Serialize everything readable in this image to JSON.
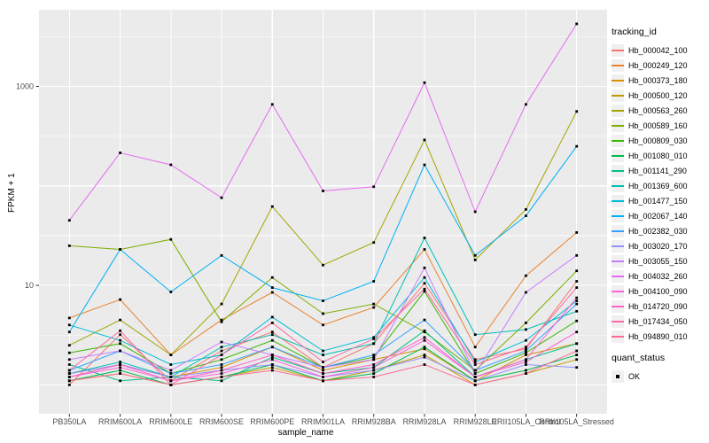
{
  "chart_data": {
    "type": "line",
    "title": "",
    "xlabel": "sample_name",
    "ylabel": "FPKM + 1",
    "y_scale": "log10",
    "ylim_log": [
      -0.29,
      3.77
    ],
    "y_ticks": [
      {
        "value": 10,
        "label": "10"
      },
      {
        "value": 1000,
        "label": "1000"
      }
    ],
    "grid": true,
    "legend_position": "right",
    "categories": [
      "PB350LA",
      "RRIM600LA",
      "RRIM600LE",
      "RRIM600SE",
      "RRIM600PE",
      "RRIM901LA",
      "RRIM928BA",
      "RRIM928LA",
      "RRIM928LE",
      "RRII105LA_Control",
      "RRII105LA_Stressed"
    ],
    "series": [
      {
        "name": "Hb_000042_100",
        "color": "#F8766D",
        "values": [
          1.0,
          3.2,
          1.1,
          2.2,
          3.4,
          1.5,
          2.6,
          10.5,
          1.8,
          2.3,
          11.0
        ]
      },
      {
        "name": "Hb_000249_120",
        "color": "#EA8331",
        "values": [
          4.7,
          7.2,
          2.0,
          4.5,
          8.5,
          4.0,
          6.0,
          23,
          2.4,
          12.5,
          34
        ]
      },
      {
        "name": "Hb_000373_180",
        "color": "#D89000",
        "values": [
          1.3,
          1.6,
          1.2,
          1.5,
          2.4,
          1.4,
          1.8,
          2.3,
          1.1,
          2.0,
          2.6
        ]
      },
      {
        "name": "Hb_000500_120",
        "color": "#C09B00",
        "values": [
          1.1,
          1.3,
          1.0,
          1.2,
          1.5,
          1.1,
          1.4,
          2.0,
          1.0,
          1.3,
          1.8
        ]
      },
      {
        "name": "Hb_000563_260",
        "color": "#A3A500",
        "values": [
          2.5,
          4.5,
          2.0,
          6.5,
          62,
          16,
          27,
          290,
          18,
          58,
          560
        ]
      },
      {
        "name": "Hb_000589_160",
        "color": "#7CAE00",
        "values": [
          25,
          23,
          29,
          4.3,
          12,
          5.2,
          6.5,
          3.4,
          1.4,
          4.2,
          14
        ]
      },
      {
        "name": "Hb_000809_030",
        "color": "#39B600",
        "values": [
          2.1,
          2.6,
          1.3,
          1.8,
          2.8,
          1.5,
          1.9,
          8.7,
          1.3,
          2.1,
          4.4
        ]
      },
      {
        "name": "Hb_001080_010",
        "color": "#00BB4E",
        "values": [
          1.1,
          1.4,
          1.0,
          1.2,
          1.6,
          1.1,
          1.3,
          2.4,
          1.1,
          1.4,
          2.0
        ]
      },
      {
        "name": "Hb_001141_290",
        "color": "#00C087",
        "values": [
          1.6,
          1.1,
          1.2,
          1.1,
          1.9,
          1.3,
          1.5,
          3.5,
          1.2,
          1.8,
          2.6
        ]
      },
      {
        "name": "Hb_001369_600",
        "color": "#00C0B4",
        "values": [
          1.3,
          1.7,
          1.2,
          2.4,
          3.2,
          2.0,
          2.6,
          30,
          3.2,
          3.6,
          5.5
        ]
      },
      {
        "name": "Hb_001477_150",
        "color": "#00BCD8",
        "values": [
          4.0,
          2.8,
          1.6,
          2.0,
          4.8,
          2.2,
          3.0,
          12,
          1.7,
          2.8,
          7.0
        ]
      },
      {
        "name": "Hb_002067_140",
        "color": "#00B0F6",
        "values": [
          3.4,
          23,
          8.6,
          20,
          9.5,
          7.0,
          11,
          163,
          20,
          50,
          250
        ]
      },
      {
        "name": "Hb_002382_030",
        "color": "#35A2FF",
        "values": [
          1.4,
          2.2,
          1.3,
          1.6,
          2.4,
          1.5,
          2.0,
          4.5,
          1.4,
          2.2,
          6.5
        ]
      },
      {
        "name": "Hb_003020_170",
        "color": "#9590FF",
        "values": [
          1.3,
          1.6,
          1.2,
          1.4,
          1.6,
          1.2,
          1.4,
          1.9,
          1.1,
          1.6,
          1.5
        ]
      },
      {
        "name": "Hb_003055_150",
        "color": "#C77CFF",
        "values": [
          1.8,
          2.2,
          1.4,
          2.7,
          2.0,
          1.5,
          1.8,
          15,
          1.3,
          8.5,
          20
        ]
      },
      {
        "name": "Hb_004032_260",
        "color": "#E76BF3",
        "values": [
          45,
          215,
          163,
          76,
          660,
          89,
          98,
          1090,
          55,
          660,
          4250
        ]
      },
      {
        "name": "Hb_004100_090",
        "color": "#FA62DB",
        "values": [
          1.2,
          1.5,
          1.1,
          1.3,
          1.8,
          1.2,
          1.5,
          2.8,
          1.2,
          1.7,
          3.4
        ]
      },
      {
        "name": "Hb_014720_090",
        "color": "#FF61C7",
        "values": [
          1.2,
          1.6,
          1.1,
          1.4,
          2.0,
          1.3,
          1.6,
          3.0,
          1.2,
          1.8,
          7.5
        ]
      },
      {
        "name": "Hb_017434_050",
        "color": "#FF67A4",
        "values": [
          1.4,
          3.5,
          1.0,
          2.0,
          4.2,
          1.7,
          2.9,
          9.2,
          1.6,
          2.4,
          9.5
        ]
      },
      {
        "name": "Hb_094890_010",
        "color": "#FF6B94",
        "values": [
          1.1,
          1.3,
          1.0,
          1.2,
          1.4,
          1.1,
          1.2,
          1.6,
          1.0,
          1.3,
          2.2
        ]
      }
    ],
    "legend": {
      "series_title": "tracking_id",
      "status_title": "quant_status",
      "status_items": [
        {
          "label": "OK",
          "marker": "black-square"
        }
      ]
    }
  },
  "style": {
    "panel_bg": "#EBEBEB",
    "grid_color": "#FFFFFF",
    "tick_label_color": "#4D4D4D",
    "axis_title_color": "#000000",
    "point_color": "#000000",
    "legend_key_bg": "#F0F0F0",
    "background": "#FFFFFF"
  }
}
